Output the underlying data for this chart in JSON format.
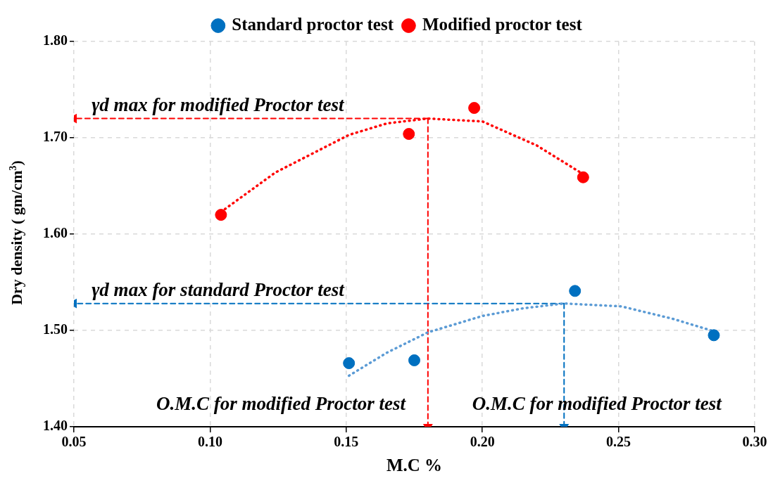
{
  "chart_data": {
    "type": "scatter",
    "xlabel": "M.C %",
    "ylabel": "Dry density ( gm/cm$^{3}$)",
    "xlim": [
      0.05,
      0.3
    ],
    "xticks": [
      0.05,
      {
        "value": 0.1,
        "label": "0.10"
      },
      0.15,
      {
        "value": 0.2,
        "label": "0.20"
      },
      0.25,
      {
        "value": 0.3,
        "label": "0.30"
      }
    ],
    "ylim": [
      1.4,
      1.8
    ],
    "yticks": [
      {
        "value": 1.4,
        "label": "1.40"
      },
      {
        "value": 1.5,
        "label": "1.50"
      },
      {
        "value": 1.6,
        "label": "1.60"
      },
      {
        "value": 1.7,
        "label": "1.70"
      },
      {
        "value": 1.8,
        "label": "1.80"
      }
    ],
    "grid": true,
    "legend": "top",
    "marker": "circle",
    "series": [
      {
        "name": "Standard proctor test",
        "color": "#0070c0",
        "x": [
          0.151,
          0.175,
          0.234,
          0.285
        ],
        "values": [
          1.466,
          1.469,
          1.541,
          1.495
        ]
      },
      {
        "name": "Modified proctor test",
        "color": "#ff0000",
        "x": [
          0.104,
          0.173,
          0.197,
          0.237
        ],
        "values": [
          1.62,
          1.704,
          1.731,
          1.659
        ]
      },
      {
        "type": "line",
        "color": "#5b9bd5",
        "line_style": "dotted",
        "marker": "none",
        "x": [
          0.151,
          0.165,
          0.18,
          0.2,
          0.215,
          0.23,
          0.251,
          0.27,
          0.284
        ],
        "values": [
          1.453,
          1.477,
          1.498,
          1.515,
          1.523,
          1.528,
          1.525,
          1.512,
          1.5
        ]
      },
      {
        "type": "line",
        "color": "#ff0000",
        "line_style": "dotted",
        "marker": "none",
        "x": [
          0.104,
          0.124,
          0.151,
          0.165,
          0.18,
          0.2,
          0.22,
          0.236
        ],
        "values": [
          1.623,
          1.664,
          1.703,
          1.715,
          1.72,
          1.717,
          1.692,
          1.664
        ]
      },
      {
        "type": "line",
        "color": "#ff0000",
        "line_style": "dashed",
        "marker": "triangle",
        "x": [
          0.18,
          0.05
        ],
        "values": [
          1.72,
          1.72
        ]
      },
      {
        "type": "line",
        "color": "#ff0000",
        "line_style": "dashed",
        "marker": "triangle",
        "x": [
          0.18,
          0.18
        ],
        "values": [
          1.72,
          1.4
        ]
      },
      {
        "type": "line",
        "color": "#0070c0",
        "line_style": "dashed",
        "marker": "triangle",
        "x": [
          0.23,
          0.05
        ],
        "values": [
          1.528,
          1.528
        ]
      },
      {
        "type": "line",
        "color": "#0070c0",
        "line_style": "dashed",
        "marker": "triangle",
        "x": [
          0.23,
          0.23
        ],
        "values": [
          1.528,
          1.4
        ]
      }
    ],
    "annotations": [
      "γd max for modified Proctor test",
      "γd max for standard Proctor test",
      "O.M.C for modified Proctor test",
      "O.M.C for modified Proctor test"
    ]
  }
}
